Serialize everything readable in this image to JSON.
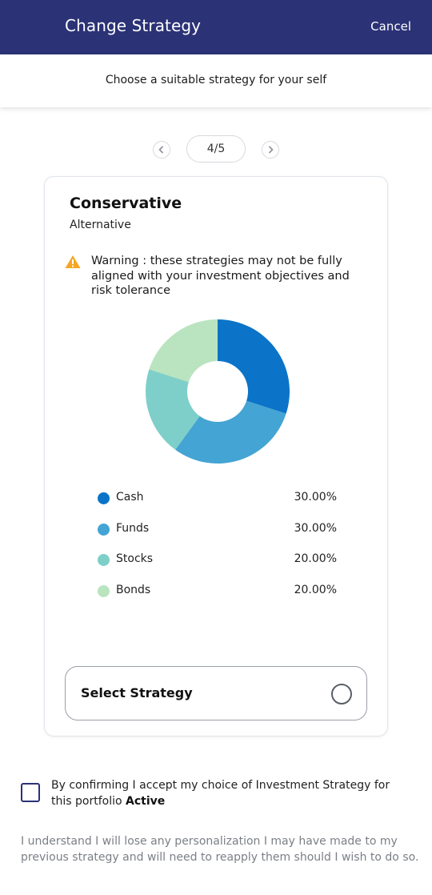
{
  "header": {
    "title": "Change Strategy",
    "cancel_label": "Cancel",
    "subtitle": "Choose a suitable strategy for your self"
  },
  "pager": {
    "prev_icon": "chevron-left-icon",
    "next_icon": "chevron-right-icon",
    "current": "4/5"
  },
  "strategy": {
    "name": "Conservative",
    "type": "Alternative",
    "warning_icon": "warning-icon",
    "warning": "Warning : these strategies may not be fully aligned with your investment objectives and risk tolerance",
    "select_label": "Select Strategy"
  },
  "chart_data": {
    "type": "pie",
    "style": "donut",
    "categories": [
      "Cash",
      "Funds",
      "Stocks",
      "Bonds"
    ],
    "values": [
      30,
      30,
      20,
      20
    ],
    "labels": [
      "30.00%",
      "30.00%",
      "20.00%",
      "20.00%"
    ],
    "colors": [
      "#0b74c8",
      "#44a4d3",
      "#7ecfc9",
      "#b9e4bf"
    ]
  },
  "confirm": {
    "text": "By confirming I accept my choice of Investment Strategy for this portfolio",
    "portfolio_status": "Active",
    "checked": false
  },
  "note": "I understand I will lose any personalization I may have made to my previous strategy and will need to reapply them should I wish to do so."
}
